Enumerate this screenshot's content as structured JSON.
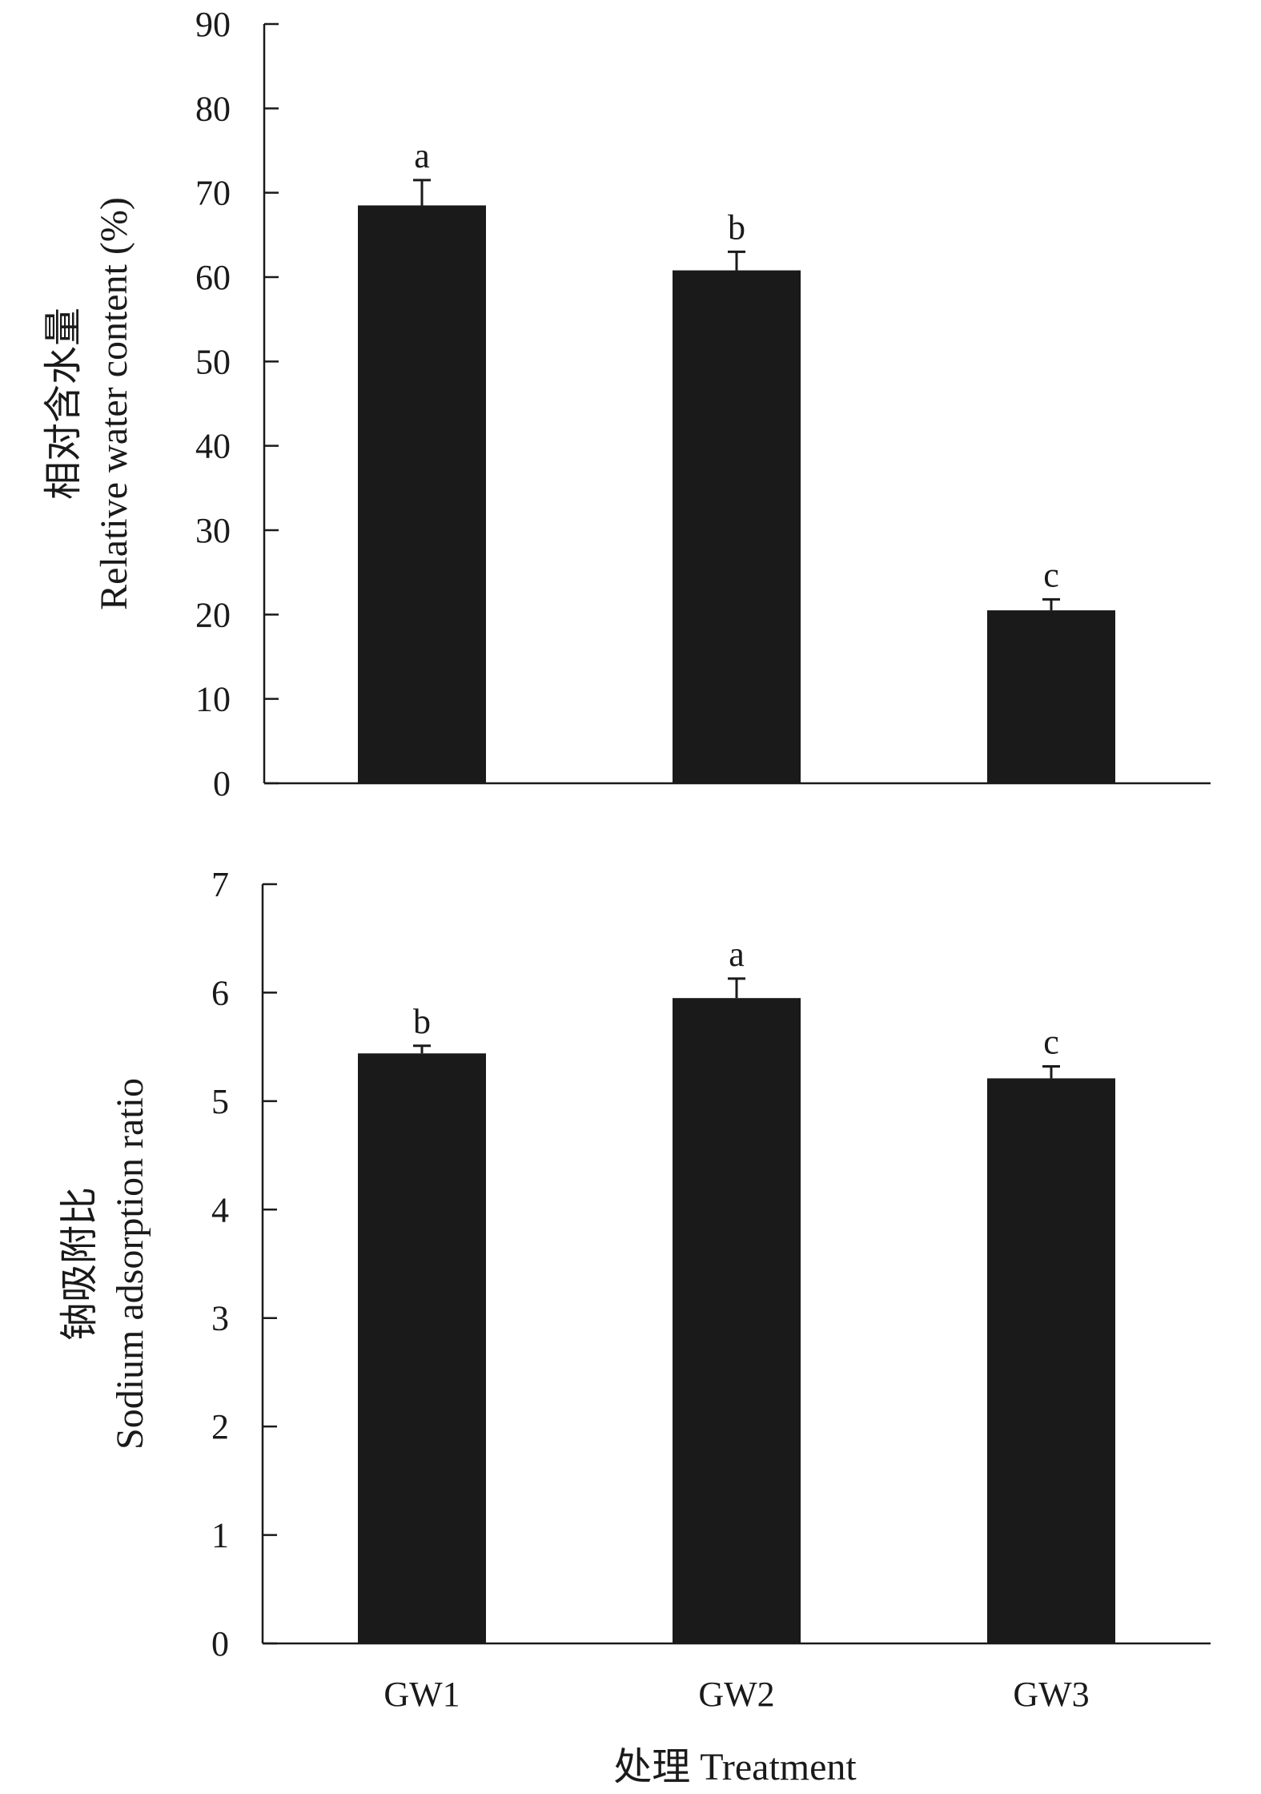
{
  "chart_data": [
    {
      "type": "bar",
      "categories": [
        "GW1",
        "GW2",
        "GW3"
      ],
      "values": [
        68.5,
        60.8,
        20.5
      ],
      "errors": [
        3.0,
        2.2,
        1.3
      ],
      "significance": [
        "a",
        "b",
        "c"
      ],
      "ylabel_cn": "相对含水量",
      "ylabel_en": "Relative water content (%)",
      "ylim": [
        0,
        90
      ],
      "yticks": [
        0,
        10,
        20,
        30,
        40,
        50,
        60,
        70,
        80,
        90
      ],
      "bar_color": "#1a1a1a",
      "show_xtick_labels": false
    },
    {
      "type": "bar",
      "categories": [
        "GW1",
        "GW2",
        "GW3"
      ],
      "values": [
        5.44,
        5.95,
        5.21
      ],
      "errors": [
        0.07,
        0.18,
        0.11
      ],
      "significance": [
        "b",
        "a",
        "c"
      ],
      "ylabel_cn": "钠吸附比",
      "ylabel_en": "Sodium adsorption ratio",
      "ylim": [
        0,
        7
      ],
      "yticks": [
        0,
        1,
        2,
        3,
        4,
        5,
        6,
        7
      ],
      "bar_color": "#1a1a1a",
      "show_xtick_labels": true
    }
  ],
  "xlabel": "处理 Treatment"
}
